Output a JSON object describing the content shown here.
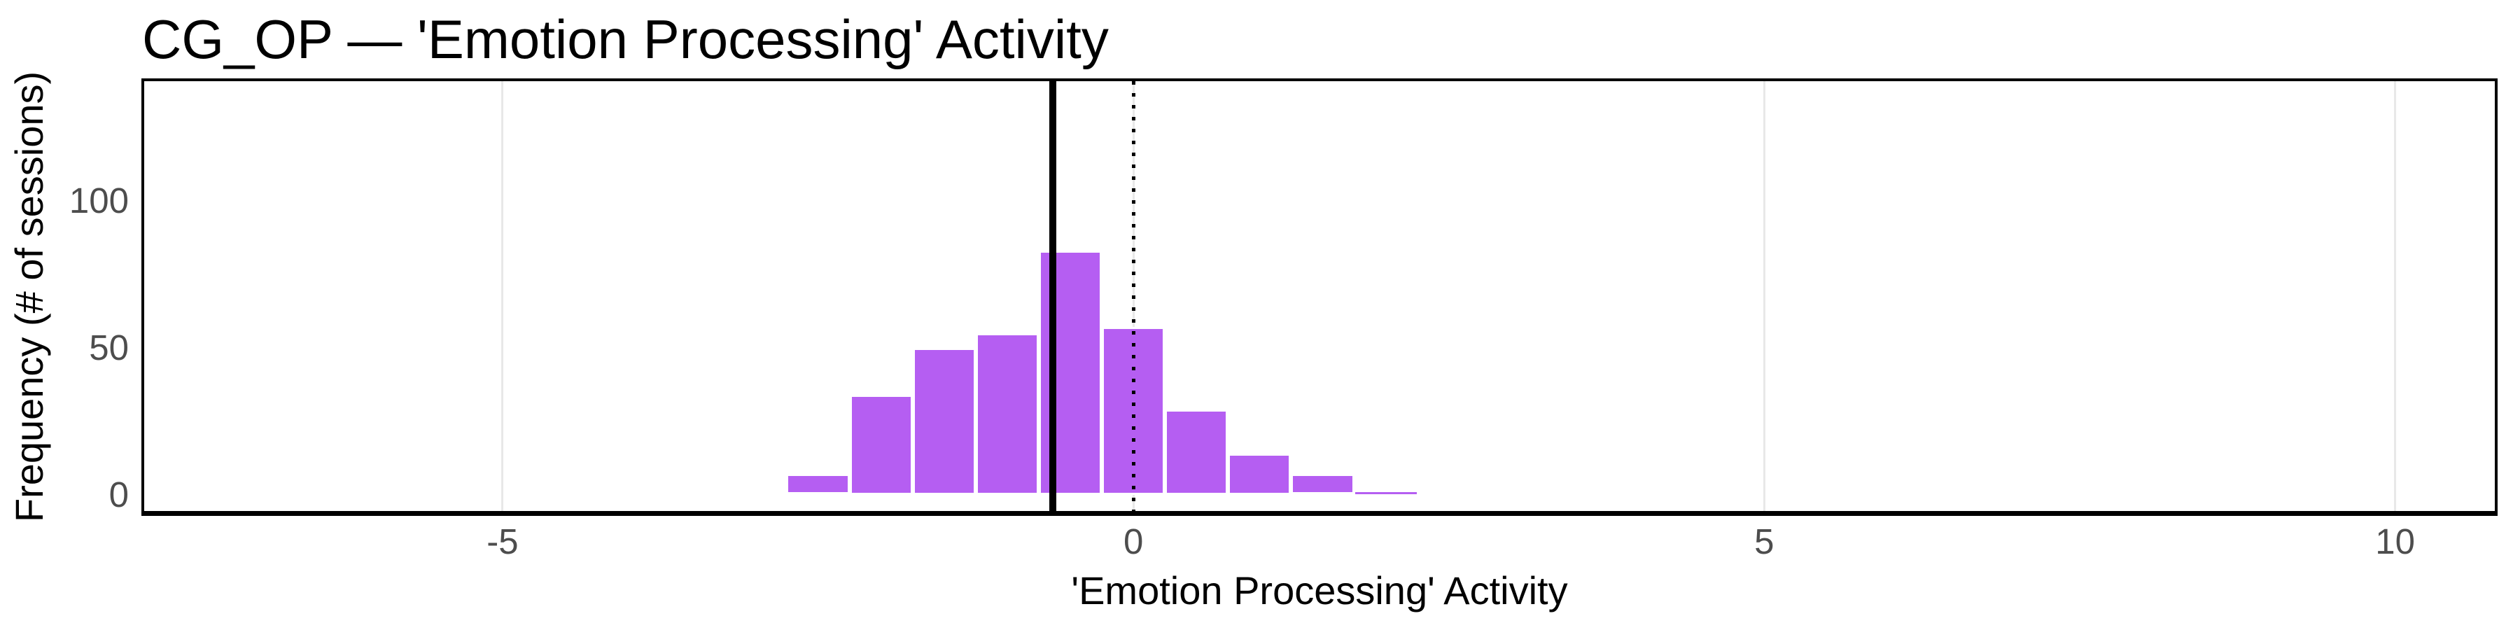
{
  "chart_data": {
    "type": "bar",
    "subtype": "histogram",
    "title": "CG_OP — 'Emotion Processing' Activity",
    "xlabel": "'Emotion Processing' Activity",
    "ylabel": "Frequency (# of sessions)",
    "bin_centers": [
      -2.5,
      -2.0,
      -1.5,
      -1.0,
      -0.5,
      0.0,
      0.5,
      1.0,
      1.5,
      2.0
    ],
    "bin_width": 0.5,
    "counts": [
      7,
      34,
      50,
      55,
      83,
      57,
      29,
      14,
      7,
      1
    ],
    "x_ticks": [
      -5,
      0,
      5,
      10
    ],
    "x_tick_labels": [
      "-5",
      "0",
      "5",
      "10"
    ],
    "y_ticks": [
      0,
      50,
      100
    ],
    "y_tick_labels": [
      "0",
      "50",
      "100"
    ],
    "xlim": [
      -7.84,
      10.79
    ],
    "ylim": [
      -5.6,
      140.8
    ],
    "mean_line_x": -0.64,
    "reference_line_x": 0,
    "grid": "vertical-major-only",
    "legend": "none",
    "colors": {
      "bar_fill": "#b55ef2",
      "bar_stroke": "#ffffff",
      "gridline": "#e8e8e8",
      "tick_label": "#4d4d4d",
      "title_text": "#000000",
      "line": "#000000",
      "panel_background": "#ffffff",
      "panel_border": "#000000"
    }
  }
}
